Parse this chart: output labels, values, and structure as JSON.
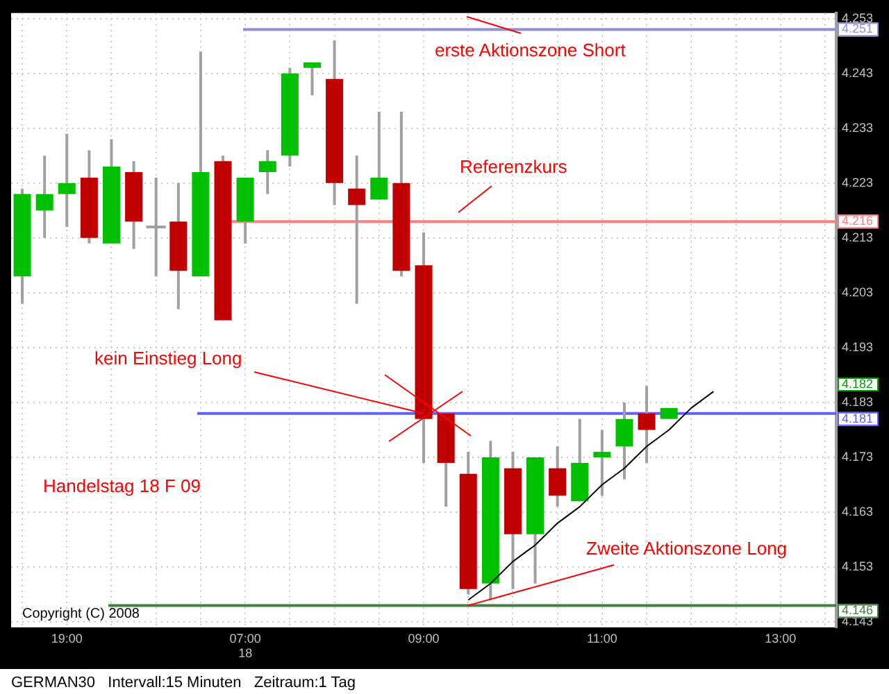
{
  "chart_data": {
    "type": "candlestick",
    "categories": [
      null,
      null,
      "19:00",
      null,
      null,
      null,
      null,
      null,
      null,
      null,
      "07:00\n18",
      null,
      null,
      null,
      null,
      null,
      null,
      null,
      "09:00",
      null,
      null,
      null,
      null,
      null,
      null,
      null,
      "11:00",
      null,
      null,
      null,
      null,
      null,
      null,
      null,
      "13:00",
      null,
      null
    ],
    "ohlc": [
      [
        4.206,
        4.222,
        4.201,
        4.221
      ],
      [
        4.218,
        4.228,
        4.213,
        4.221
      ],
      [
        4.221,
        4.232,
        4.215,
        4.223
      ],
      [
        4.224,
        4.229,
        4.212,
        4.213
      ],
      [
        4.212,
        4.231,
        4.212,
        4.226
      ],
      [
        4.225,
        4.227,
        4.211,
        4.216
      ],
      [
        4.215,
        4.224,
        4.206,
        4.215
      ],
      [
        4.216,
        4.223,
        4.2,
        4.207
      ],
      [
        4.206,
        4.247,
        4.206,
        4.225
      ],
      [
        4.227,
        4.228,
        4.198,
        4.198
      ],
      [
        4.216,
        4.224,
        4.212,
        4.224
      ],
      [
        4.225,
        4.229,
        4.221,
        4.227
      ],
      [
        4.228,
        4.244,
        4.226,
        4.243
      ],
      [
        4.244,
        4.245,
        4.239,
        4.245
      ],
      [
        4.242,
        4.249,
        4.219,
        4.223
      ],
      [
        4.222,
        4.228,
        4.201,
        4.219
      ],
      [
        4.22,
        4.236,
        4.22,
        4.224
      ],
      [
        4.223,
        4.236,
        4.206,
        4.207
      ],
      [
        4.208,
        4.214,
        4.172,
        4.18
      ],
      [
        4.181,
        4.181,
        4.164,
        4.172
      ],
      [
        4.17,
        4.174,
        4.148,
        4.149
      ],
      [
        4.15,
        4.176,
        4.147,
        4.173
      ],
      [
        4.171,
        4.174,
        4.149,
        4.159
      ],
      [
        4.159,
        4.173,
        4.15,
        4.173
      ],
      [
        4.171,
        4.175,
        4.164,
        4.166
      ],
      [
        4.165,
        4.18,
        4.165,
        4.172
      ],
      [
        4.173,
        4.178,
        4.166,
        4.174
      ],
      [
        4.175,
        4.183,
        4.169,
        4.18
      ],
      [
        4.181,
        4.186,
        4.172,
        4.178
      ],
      [
        4.18,
        4.182,
        4.18,
        4.182
      ],
      null,
      null,
      null,
      null,
      null,
      null,
      null
    ],
    "colors": [
      "#00c000",
      "#00c000",
      "#00c000",
      "#c00000",
      "#00c000",
      "#c00000",
      "#a0a0a0",
      "#c00000",
      "#00c000",
      "#c00000",
      "#00c000",
      "#00c000",
      "#00c000",
      "#00c000",
      "#c00000",
      "#c00000",
      "#00c000",
      "#c00000",
      "#c00000",
      "#c00000",
      "#c00000",
      "#00c000",
      "#c00000",
      "#00c000",
      "#c00000",
      "#00c000",
      "#00c000",
      "#00c000",
      "#c00000",
      "#00c000",
      null,
      null,
      null,
      null,
      null,
      null,
      null
    ],
    "series": [
      {
        "type": "line",
        "color": "#000000",
        "values": [
          null,
          null,
          null,
          null,
          null,
          null,
          null,
          null,
          null,
          null,
          null,
          null,
          null,
          null,
          null,
          null,
          null,
          null,
          null,
          null,
          4.147,
          4.15,
          4.154,
          4.157,
          4.161,
          4.164,
          4.168,
          4.171,
          4.175,
          4.178,
          4.182,
          4.185,
          null,
          null,
          null,
          null,
          null
        ]
      }
    ],
    "ylim": [
      4.142,
      4.254
    ],
    "yticks": [
      4.143,
      4.153,
      4.163,
      4.173,
      4.183,
      4.193,
      4.203,
      4.213,
      4.223,
      4.233,
      4.243,
      4.253
    ],
    "grid": true,
    "ref_lines": [
      {
        "axis": "y",
        "value": 4.251,
        "label": "4.251",
        "color": "#9090d8"
      },
      {
        "axis": "y",
        "value": 4.216,
        "label": "4.216",
        "color": "#ff8080"
      },
      {
        "axis": "y",
        "value": 4.181,
        "label": "4.181",
        "color": "#6060ff"
      },
      {
        "axis": "y",
        "value": 4.146,
        "label": "4.146",
        "color": "#408040"
      }
    ],
    "annotations": [
      "erste Aktionszone Short",
      "Referenzkurs",
      {
        "text": "kein Einstieg Long",
        "x": "09:00",
        "y": 4.181
      },
      "Handelstag 18 F 09",
      {
        "text": "Zweite Aktionszone Long",
        "y": 4.146
      },
      "Copyright (C) 2008",
      "GERMAN30   Intervall:15 Minuten   Zeitraum:1 Tag",
      "4.182"
    ]
  }
}
